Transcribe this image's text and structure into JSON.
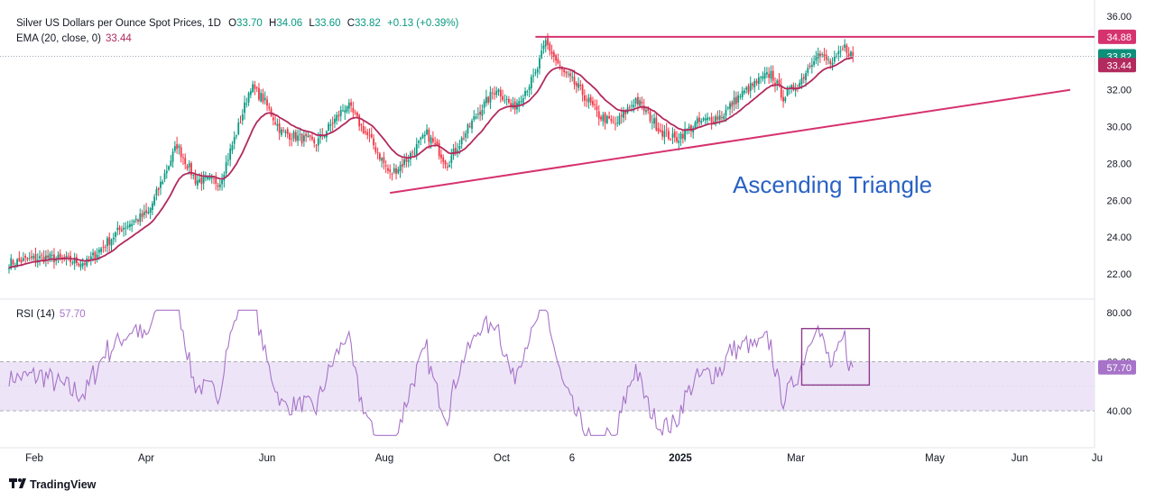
{
  "header": {
    "symbol": "Silver US Dollars per Ounce Spot Prices, 1D",
    "o_label": "O",
    "o_value": "33.70",
    "h_label": "H",
    "h_value": "34.06",
    "l_label": "L",
    "l_value": "33.60",
    "c_label": "C",
    "c_value": "33.82",
    "change": "+0.13 (+0.39%)",
    "ema_label": "EMA (20, close, 0)",
    "ema_value": "33.44",
    "rsi_label": "RSI (14)",
    "rsi_value": "57.70"
  },
  "annotation": {
    "pattern_text": "Ascending Triangle"
  },
  "footer": {
    "brand": "TradingView"
  },
  "colors": {
    "up": "#089981",
    "down": "#f23645",
    "ema": "#b22a5e",
    "trend": "#d6326e",
    "rsi": "#a773c9",
    "rsi_fill": "#ede5f7",
    "annotation": "#2962c4",
    "last_price": "#0d8f7a"
  },
  "chart_data": [
    {
      "type": "candlestick",
      "title": "Silver US Dollars per Ounce Spot Prices, 1D",
      "y_ticks": [
        "36.00",
        "34.00",
        "32.00",
        "30.00",
        "28.00",
        "26.00",
        "24.00",
        "22.00"
      ],
      "ylim": [
        20.6,
        36.2
      ],
      "x_ticks": [
        "Feb",
        "Apr",
        "Jun",
        "Aug",
        "Oct",
        "6",
        "2025",
        "Mar",
        "May",
        "Jun",
        "Ju"
      ],
      "anchors": [
        {
          "d": 0,
          "c": 22.6
        },
        {
          "d": 18,
          "c": 22.9
        },
        {
          "d": 38,
          "c": 22.6
        },
        {
          "d": 55,
          "c": 24.5
        },
        {
          "d": 68,
          "c": 25.3
        },
        {
          "d": 82,
          "c": 29.0
        },
        {
          "d": 91,
          "c": 27.1
        },
        {
          "d": 103,
          "c": 27.0
        },
        {
          "d": 112,
          "c": 30.0
        },
        {
          "d": 118,
          "c": 32.2
        },
        {
          "d": 124,
          "c": 31.5
        },
        {
          "d": 133,
          "c": 29.7
        },
        {
          "d": 150,
          "c": 29.1
        },
        {
          "d": 165,
          "c": 31.2
        },
        {
          "d": 178,
          "c": 29.0
        },
        {
          "d": 186,
          "c": 27.4
        },
        {
          "d": 194,
          "c": 28.2
        },
        {
          "d": 204,
          "c": 29.6
        },
        {
          "d": 214,
          "c": 28.0
        },
        {
          "d": 228,
          "c": 30.6
        },
        {
          "d": 238,
          "c": 32.1
        },
        {
          "d": 246,
          "c": 31.0
        },
        {
          "d": 257,
          "c": 32.8
        },
        {
          "d": 262,
          "c": 34.6
        },
        {
          "d": 270,
          "c": 33.0
        },
        {
          "d": 278,
          "c": 32.1
        },
        {
          "d": 288,
          "c": 30.6
        },
        {
          "d": 296,
          "c": 30.1
        },
        {
          "d": 306,
          "c": 31.5
        },
        {
          "d": 318,
          "c": 29.8
        },
        {
          "d": 325,
          "c": 29.3
        },
        {
          "d": 336,
          "c": 30.2
        },
        {
          "d": 348,
          "c": 30.6
        },
        {
          "d": 356,
          "c": 31.6
        },
        {
          "d": 365,
          "c": 32.4
        },
        {
          "d": 372,
          "c": 32.9
        },
        {
          "d": 378,
          "c": 31.6
        },
        {
          "d": 386,
          "c": 32.4
        },
        {
          "d": 394,
          "c": 34.0
        },
        {
          "d": 402,
          "c": 33.4
        },
        {
          "d": 408,
          "c": 34.3
        },
        {
          "d": 412,
          "c": 33.82
        }
      ],
      "ema": {
        "label": "EMA (20, close, 0)",
        "last": 33.44
      },
      "resistance": {
        "from": {
          "d": 257,
          "y": 34.88
        },
        "to": {
          "d": 530,
          "y": 34.88
        }
      },
      "support": {
        "from": {
          "d": 186,
          "y": 26.4
        },
        "to": {
          "d": 520,
          "y": 32.0
        }
      },
      "price_labels": [
        "34.88",
        "33.82",
        "33.44"
      ],
      "annotation": "Ascending Triangle"
    },
    {
      "type": "line",
      "title": "RSI (14)",
      "y_ticks": [
        "80.00",
        "60.00",
        "40.00"
      ],
      "ylim": [
        27,
        86
      ],
      "band": [
        40,
        60
      ],
      "last": 57.7,
      "highlight_box": {
        "d0": 387,
        "d1": 420,
        "y0": 50.5,
        "y1": 73.5
      }
    }
  ]
}
